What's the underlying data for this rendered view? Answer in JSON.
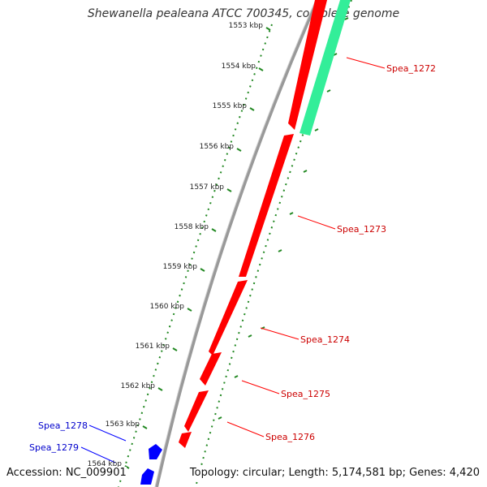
{
  "title": "Shewanella pealeana ATCC 700345, complete genome",
  "footer": {
    "accession": "Accession: NC_009901",
    "summary": "Topology: circular; Length: 5,174,581 bp; Genes: 4,420"
  },
  "ticks": [
    {
      "label": "1553 kbp"
    },
    {
      "label": "1554 kbp"
    },
    {
      "label": "1555 kbp"
    },
    {
      "label": "1556 kbp"
    },
    {
      "label": "1557 kbp"
    },
    {
      "label": "1558 kbp"
    },
    {
      "label": "1559 kbp"
    },
    {
      "label": "1560 kbp"
    },
    {
      "label": "1561 kbp"
    },
    {
      "label": "1562 kbp"
    },
    {
      "label": "1563 kbp"
    },
    {
      "label": "1564 kbp"
    }
  ],
  "genes_forward": [
    {
      "name": "Spea_1272"
    },
    {
      "name": "Spea_1273"
    },
    {
      "name": "Spea_1274"
    },
    {
      "name": "Spea_1275"
    },
    {
      "name": "Spea_1276"
    }
  ],
  "genes_reverse": [
    {
      "name": "Spea_1278"
    },
    {
      "name": "Spea_1279"
    }
  ],
  "colors": {
    "forward_gene": "#ff0000",
    "reverse_gene": "#0000ff",
    "feature_band": "#33ee99",
    "backbone": "#888888",
    "tick": "#228822",
    "forward_label": "#cc0000",
    "reverse_label": "#0000cc"
  }
}
